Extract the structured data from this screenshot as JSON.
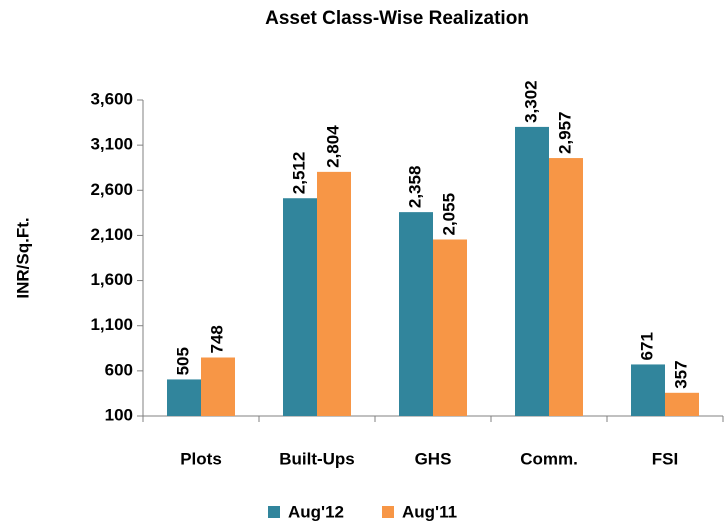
{
  "chart_data": {
    "type": "bar",
    "title": "Asset Class-Wise Realization",
    "y_label": "INR/Sq.Ft.",
    "categories": [
      "Plots",
      "Built-Ups",
      "GHS",
      "Comm.",
      "FSI"
    ],
    "series": [
      {
        "name": "Aug'12",
        "color": "#31859c",
        "values": [
          505,
          2512,
          2358,
          3302,
          671
        ],
        "value_labels": [
          "505",
          "2,512",
          "2,358",
          "3,302",
          "671"
        ]
      },
      {
        "name": "Aug'11",
        "color": "#f79646",
        "values": [
          748,
          2804,
          2055,
          2957,
          357
        ],
        "value_labels": [
          "748",
          "2,804",
          "2,055",
          "2,957",
          "357"
        ]
      }
    ],
    "ylim": [
      100,
      3600
    ],
    "yticks": [
      100,
      600,
      {
        "value": 1100,
        "label": "1,100"
      },
      {
        "value": 1600,
        "label": "1,600"
      },
      {
        "value": 2100,
        "label": "2,100"
      },
      {
        "value": 2600,
        "label": "2,600"
      },
      {
        "value": 3100,
        "label": "3,100"
      },
      {
        "value": 3600,
        "label": "3,600"
      }
    ],
    "legend": "bottom"
  }
}
